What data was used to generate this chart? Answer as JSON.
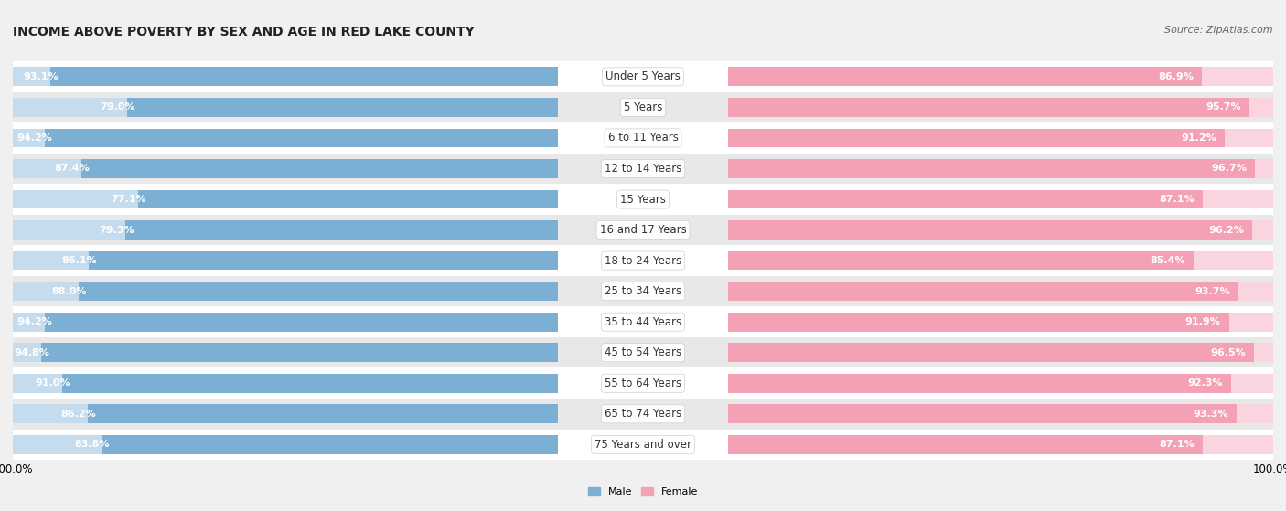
{
  "title": "INCOME ABOVE POVERTY BY SEX AND AGE IN RED LAKE COUNTY",
  "source": "Source: ZipAtlas.com",
  "categories": [
    "Under 5 Years",
    "5 Years",
    "6 to 11 Years",
    "12 to 14 Years",
    "15 Years",
    "16 and 17 Years",
    "18 to 24 Years",
    "25 to 34 Years",
    "35 to 44 Years",
    "45 to 54 Years",
    "55 to 64 Years",
    "65 to 74 Years",
    "75 Years and over"
  ],
  "male_values": [
    93.1,
    79.0,
    94.2,
    87.4,
    77.1,
    79.3,
    86.1,
    88.0,
    94.2,
    94.8,
    91.0,
    86.2,
    83.8
  ],
  "female_values": [
    86.9,
    95.7,
    91.2,
    96.7,
    87.1,
    96.2,
    85.4,
    93.7,
    91.9,
    96.5,
    92.3,
    93.3,
    87.1
  ],
  "male_color": "#7bafd4",
  "female_color": "#f4a0b5",
  "male_color_light": "#c5dcee",
  "female_color_light": "#fad4df",
  "male_label": "Male",
  "female_label": "Female",
  "bar_height": 0.62,
  "xlim": 100.0,
  "background_color": "#f0f0f0",
  "row_bg_even": "#ffffff",
  "row_bg_odd": "#e8e8e8",
  "title_fontsize": 10,
  "label_fontsize": 8.0,
  "value_fontsize": 8.0,
  "tick_fontsize": 8.5,
  "source_fontsize": 8,
  "cat_fontsize": 8.5
}
